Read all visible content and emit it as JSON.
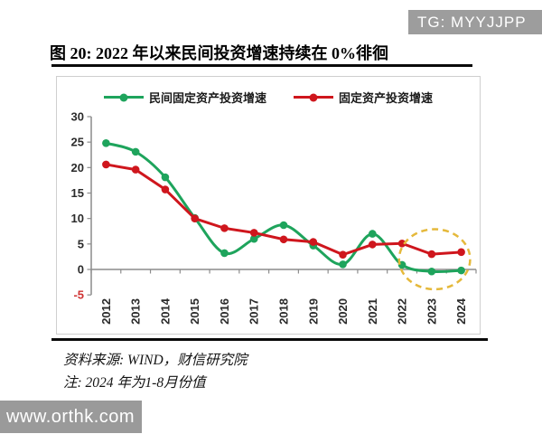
{
  "badge": {
    "label": "TG: MYYJJPP"
  },
  "watermark": {
    "label": "www.orthk.com"
  },
  "figure": {
    "title": "图 20:  2022 年以来民间投资增速持续在 0%徘徊",
    "source": "资料来源: WIND，财信研究院",
    "note": "注: 2024 年为1-8月份值"
  },
  "colors": {
    "private_series": "#1ea45c",
    "total_series": "#cf161d",
    "highlight_ellipse": "#e5b93b",
    "axis": "#8c8c8c",
    "tick_label": "#2b2b2b",
    "negative_tick_label": "#cf3333",
    "badge_bg": "#9d9d9d",
    "watermark_bg": "#9a9a9a",
    "rule": "#0a0a0a"
  },
  "chart_data": {
    "type": "line",
    "title": "",
    "xlabel": "",
    "ylabel": "",
    "categories": [
      "2012",
      "2013",
      "2014",
      "2015",
      "2016",
      "2017",
      "2018",
      "2019",
      "2020",
      "2021",
      "2022",
      "2023",
      "2024"
    ],
    "series": [
      {
        "name": "民间固定资产投资增速",
        "color_key": "private_series",
        "smooth": true,
        "values": [
          24.8,
          23.1,
          18.1,
          10.1,
          3.2,
          6.0,
          8.7,
          4.7,
          1.0,
          7.0,
          0.9,
          -0.4,
          -0.2
        ]
      },
      {
        "name": "固定资产投资增速",
        "color_key": "total_series",
        "smooth": false,
        "values": [
          20.6,
          19.6,
          15.7,
          10.0,
          8.1,
          7.2,
          5.9,
          5.4,
          2.9,
          4.9,
          5.1,
          3.0,
          3.4
        ]
      }
    ],
    "ylim": [
      -5,
      30
    ],
    "y_ticks": [
      30,
      25,
      20,
      15,
      10,
      5,
      0,
      -5
    ],
    "grid": false,
    "legend_position": "top",
    "annotation_ellipse": {
      "x_center_category_index": 11.1,
      "y_center": 2.0,
      "x_radius_categories": 1.2,
      "y_radius_units": 5.9
    }
  }
}
